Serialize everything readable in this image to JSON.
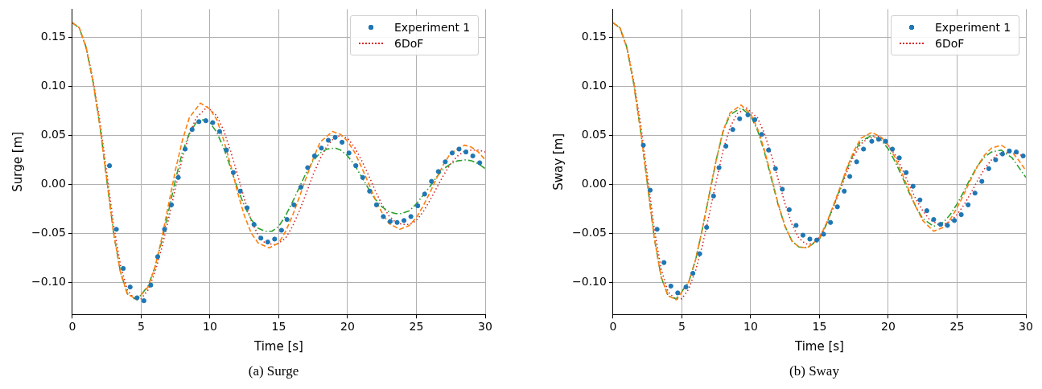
{
  "chart_data": [
    {
      "type": "line",
      "title": "(a) Surge",
      "xlabel": "Time [s]",
      "ylabel": "Surge [m]",
      "xlim": [
        0,
        30
      ],
      "ylim": [
        -0.133,
        0.179
      ],
      "xticks": [
        0,
        5,
        10,
        15,
        20,
        25,
        30
      ],
      "yticks": [
        {
          "value": -0.1,
          "label": "−0.10"
        },
        {
          "value": -0.05,
          "label": "−0.05"
        },
        {
          "value": 0,
          "label": "0.00"
        },
        {
          "value": 0.05,
          "label": "0.05"
        },
        {
          "value": 0.1,
          "label": "0.10"
        },
        {
          "value": 0.15,
          "label": "0.15"
        }
      ],
      "grid": true,
      "legend": "top right",
      "series": [
        {
          "name": "Experiment 1",
          "type": "scatter",
          "marker": "circle",
          "color": "#1f77b4",
          "x": [
            2.7,
            3.2,
            3.7,
            4.2,
            4.7,
            5.2,
            5.7,
            6.2,
            6.7,
            7.2,
            7.7,
            8.2,
            8.7,
            9.2,
            9.7,
            10.2,
            10.7,
            11.2,
            11.7,
            12.2,
            12.7,
            13.2,
            13.7,
            14.2,
            14.7,
            15.2,
            15.6,
            16.1,
            16.6,
            17.1,
            17.6,
            18.1,
            18.6,
            19.1,
            19.6,
            20.1,
            20.6,
            21.1,
            21.6,
            22.1,
            22.6,
            23.1,
            23.6,
            24.1,
            24.6,
            25.1,
            25.6,
            26.1,
            26.6,
            27.1,
            27.6,
            28.1,
            28.6,
            29.1,
            29.6
          ],
          "values": [
            0.019,
            -0.046,
            -0.086,
            -0.105,
            -0.116,
            -0.119,
            -0.103,
            -0.074,
            -0.046,
            -0.021,
            0.007,
            0.036,
            0.056,
            0.064,
            0.065,
            0.063,
            0.054,
            0.035,
            0.012,
            -0.007,
            -0.024,
            -0.041,
            -0.055,
            -0.059,
            -0.056,
            -0.047,
            -0.036,
            -0.021,
            -0.003,
            0.017,
            0.029,
            0.037,
            0.045,
            0.048,
            0.043,
            0.032,
            0.019,
            0.007,
            -0.007,
            -0.021,
            -0.033,
            -0.038,
            -0.039,
            -0.037,
            -0.033,
            -0.022,
            -0.01,
            0.003,
            0.013,
            0.023,
            0.032,
            0.036,
            0.033,
            0.029,
            0.022
          ]
        },
        {
          "type": "line",
          "line_style": "dashed",
          "marker": "none",
          "color": "#ff7f0e",
          "x": [
            0,
            0.5,
            1,
            1.5,
            2,
            2.5,
            3,
            3.5,
            4,
            4.7,
            5.5,
            6,
            6.5,
            7,
            7.5,
            8,
            8.5,
            9.3,
            10,
            10.5,
            11,
            11.5,
            12,
            12.5,
            13,
            13.5,
            14.3,
            15,
            15.5,
            16,
            16.5,
            17,
            17.5,
            18,
            18.9,
            19.5,
            20,
            20.5,
            21,
            21.5,
            22,
            22.5,
            23,
            23.8,
            24.5,
            25,
            25.5,
            26,
            26.5,
            27,
            27.5,
            28.5,
            29,
            29.5,
            30
          ],
          "values": [
            0.165,
            0.16,
            0.14,
            0.105,
            0.06,
            0.005,
            -0.05,
            -0.09,
            -0.112,
            -0.118,
            -0.105,
            -0.085,
            -0.055,
            -0.02,
            0.015,
            0.045,
            0.068,
            0.083,
            0.077,
            0.066,
            0.045,
            0.02,
            -0.008,
            -0.032,
            -0.05,
            -0.06,
            -0.065,
            -0.06,
            -0.048,
            -0.032,
            -0.013,
            0.007,
            0.026,
            0.043,
            0.054,
            0.051,
            0.044,
            0.033,
            0.018,
            0.002,
            -0.015,
            -0.029,
            -0.04,
            -0.046,
            -0.042,
            -0.034,
            -0.022,
            -0.008,
            0.007,
            0.021,
            0.032,
            0.04,
            0.038,
            0.033,
            0.025
          ]
        },
        {
          "type": "line",
          "line_style": "dashdot",
          "marker": "none",
          "color": "#2ca02c",
          "x": [
            0,
            0.5,
            1,
            1.5,
            2,
            2.5,
            3,
            3.5,
            4,
            4.7,
            5.5,
            6,
            6.5,
            7,
            7.5,
            8,
            8.5,
            9,
            9.5,
            10,
            10.5,
            11,
            11.5,
            12,
            12.5,
            13,
            13.5,
            14,
            14.5,
            15,
            15.5,
            16,
            16.5,
            17,
            17.5,
            18,
            18.5,
            19.1,
            19.5,
            20,
            20.5,
            21,
            21.5,
            22,
            22.5,
            23,
            23.5,
            23.9,
            24.5,
            25,
            25.5,
            26,
            26.5,
            27,
            27.5,
            28,
            28.6,
            29,
            29.5,
            30
          ],
          "values": [
            0.165,
            0.16,
            0.14,
            0.105,
            0.06,
            0.005,
            -0.05,
            -0.09,
            -0.112,
            -0.118,
            -0.104,
            -0.085,
            -0.058,
            -0.027,
            0.005,
            0.033,
            0.052,
            0.063,
            0.066,
            0.063,
            0.053,
            0.037,
            0.017,
            -0.004,
            -0.022,
            -0.036,
            -0.045,
            -0.048,
            -0.048,
            -0.043,
            -0.032,
            -0.018,
            -0.003,
            0.012,
            0.024,
            0.032,
            0.036,
            0.037,
            0.035,
            0.029,
            0.02,
            0.008,
            -0.004,
            -0.015,
            -0.023,
            -0.028,
            -0.03,
            -0.03,
            -0.027,
            -0.02,
            -0.011,
            -0.002,
            0.008,
            0.016,
            0.021,
            0.024,
            0.025,
            0.024,
            0.021,
            0.016
          ]
        },
        {
          "name": "6DoF",
          "type": "line",
          "line_style": "dotted",
          "marker": "none",
          "color": "#d62728",
          "x": [
            0,
            0.5,
            1,
            1.5,
            2,
            2.5,
            3,
            3.5,
            4,
            4.5,
            5,
            5.5,
            6,
            6.5,
            7,
            7.5,
            8,
            8.5,
            9,
            9.8,
            10.5,
            11,
            11.5,
            12,
            12.5,
            13,
            13.5,
            14,
            14.8,
            15.5,
            16,
            16.5,
            17,
            17.5,
            18,
            18.5,
            19,
            19.5,
            20,
            20.5,
            21,
            21.5,
            22,
            22.5,
            23,
            23.5,
            24,
            24.5,
            25,
            25.5,
            26,
            26.5,
            27,
            27.5,
            28,
            28.5,
            29,
            29.5,
            30
          ],
          "values": [
            0.165,
            0.16,
            0.14,
            0.107,
            0.065,
            0.012,
            -0.042,
            -0.083,
            -0.108,
            -0.117,
            -0.117,
            -0.108,
            -0.09,
            -0.065,
            -0.035,
            -0.003,
            0.027,
            0.051,
            0.068,
            0.079,
            0.07,
            0.055,
            0.034,
            0.01,
            -0.015,
            -0.037,
            -0.052,
            -0.06,
            -0.062,
            -0.055,
            -0.043,
            -0.027,
            -0.009,
            0.01,
            0.026,
            0.039,
            0.047,
            0.05,
            0.047,
            0.038,
            0.025,
            0.01,
            -0.006,
            -0.021,
            -0.032,
            -0.039,
            -0.041,
            -0.041,
            -0.037,
            -0.028,
            -0.016,
            -0.003,
            0.01,
            0.021,
            0.029,
            0.034,
            0.035,
            0.035,
            0.033
          ]
        }
      ]
    },
    {
      "type": "line",
      "title": "(b) Sway",
      "xlabel": "Time [s]",
      "ylabel": "Sway [m]",
      "xlim": [
        0,
        30
      ],
      "ylim": [
        -0.133,
        0.179
      ],
      "xticks": [
        0,
        5,
        10,
        15,
        20,
        25,
        30
      ],
      "yticks": [
        {
          "value": -0.1,
          "label": "−0.10"
        },
        {
          "value": -0.05,
          "label": "−0.05"
        },
        {
          "value": 0,
          "label": "0.00"
        },
        {
          "value": 0.05,
          "label": "0.05"
        },
        {
          "value": 0.1,
          "label": "0.10"
        },
        {
          "value": 0.15,
          "label": "0.15"
        }
      ],
      "grid": true,
      "legend": "top right",
      "series": [
        {
          "name": "Experiment 1",
          "type": "scatter",
          "marker": "circle",
          "color": "#1f77b4",
          "x": [
            2.2,
            2.7,
            3.2,
            3.7,
            4.2,
            4.7,
            5.3,
            5.8,
            6.3,
            6.8,
            7.3,
            7.7,
            8.2,
            8.7,
            9.2,
            9.8,
            10.3,
            10.8,
            11.3,
            11.8,
            12.3,
            12.8,
            13.3,
            13.8,
            14.3,
            14.8,
            15.3,
            15.8,
            16.3,
            16.8,
            17.2,
            17.7,
            18.2,
            18.8,
            19.3,
            19.8,
            20.3,
            20.8,
            21.3,
            21.8,
            22.3,
            22.8,
            23.3,
            23.8,
            24.3,
            24.8,
            25.3,
            25.8,
            26.3,
            26.8,
            27.3,
            27.8,
            28.3,
            28.8,
            29.3,
            29.8
          ],
          "values": [
            0.04,
            -0.006,
            -0.046,
            -0.08,
            -0.104,
            -0.111,
            -0.105,
            -0.091,
            -0.071,
            -0.044,
            -0.012,
            0.017,
            0.039,
            0.056,
            0.067,
            0.071,
            0.066,
            0.051,
            0.035,
            0.016,
            -0.005,
            -0.026,
            -0.042,
            -0.052,
            -0.056,
            -0.057,
            -0.051,
            -0.039,
            -0.023,
            -0.007,
            0.008,
            0.023,
            0.036,
            0.044,
            0.046,
            0.044,
            0.036,
            0.027,
            0.012,
            -0.002,
            -0.016,
            -0.027,
            -0.036,
            -0.041,
            -0.042,
            -0.037,
            -0.031,
            -0.021,
            -0.009,
            0.003,
            0.016,
            0.025,
            0.031,
            0.034,
            0.033,
            0.029
          ]
        },
        {
          "type": "line",
          "line_style": "dashed",
          "marker": "none",
          "color": "#ff7f0e",
          "x": [
            0,
            0.5,
            1,
            1.5,
            2,
            2.5,
            3,
            3.5,
            4,
            4.6,
            5.5,
            6,
            6.5,
            7,
            7.5,
            8,
            8.5,
            9.3,
            10,
            10.5,
            11,
            11.5,
            12,
            12.5,
            13,
            13.5,
            14.1,
            15,
            15.5,
            16,
            16.5,
            17,
            17.5,
            18,
            18.8,
            19.5,
            20,
            20.5,
            21,
            21.5,
            22,
            22.5,
            23.3,
            24,
            24.5,
            25,
            25.5,
            26,
            26.5,
            27,
            27.5,
            28.2,
            29,
            29.5,
            30
          ],
          "values": [
            0.165,
            0.16,
            0.14,
            0.103,
            0.055,
            0,
            -0.055,
            -0.095,
            -0.114,
            -0.118,
            -0.1,
            -0.077,
            -0.045,
            -0.01,
            0.025,
            0.055,
            0.073,
            0.081,
            0.072,
            0.057,
            0.035,
            0.008,
            -0.02,
            -0.043,
            -0.058,
            -0.064,
            -0.065,
            -0.055,
            -0.04,
            -0.022,
            -0.003,
            0.017,
            0.034,
            0.047,
            0.053,
            0.048,
            0.04,
            0.027,
            0.011,
            -0.006,
            -0.023,
            -0.037,
            -0.048,
            -0.044,
            -0.036,
            -0.024,
            -0.01,
            0.005,
            0.019,
            0.03,
            0.037,
            0.04,
            0.033,
            0.024,
            0.014
          ]
        },
        {
          "type": "line",
          "line_style": "dashdot",
          "marker": "none",
          "color": "#2ca02c",
          "x": [
            0,
            0.5,
            1,
            1.5,
            2,
            2.5,
            3,
            3.5,
            4,
            4.6,
            5.5,
            6,
            6.5,
            7,
            7.5,
            8,
            8.5,
            9.3,
            10,
            10.5,
            11,
            11.5,
            12,
            12.5,
            13,
            13.5,
            14.1,
            15,
            15.5,
            16,
            16.5,
            17,
            17.5,
            18,
            18.8,
            19.5,
            20,
            20.5,
            21,
            21.5,
            22,
            22.5,
            23.3,
            24,
            24.5,
            25,
            25.5,
            26,
            26.5,
            27,
            27.5,
            28.2,
            29,
            29.5,
            30
          ],
          "values": [
            0.165,
            0.16,
            0.14,
            0.103,
            0.055,
            0,
            -0.055,
            -0.095,
            -0.114,
            -0.117,
            -0.1,
            -0.077,
            -0.045,
            -0.01,
            0.025,
            0.054,
            0.071,
            0.078,
            0.07,
            0.055,
            0.033,
            0.006,
            -0.021,
            -0.043,
            -0.058,
            -0.064,
            -0.065,
            -0.056,
            -0.041,
            -0.023,
            -0.004,
            0.016,
            0.032,
            0.044,
            0.05,
            0.045,
            0.036,
            0.023,
            0.008,
            -0.008,
            -0.023,
            -0.035,
            -0.043,
            -0.039,
            -0.031,
            -0.02,
            -0.007,
            0.007,
            0.019,
            0.028,
            0.033,
            0.035,
            0.027,
            0.017,
            0.007
          ]
        },
        {
          "name": "6DoF",
          "type": "line",
          "line_style": "dotted",
          "marker": "none",
          "color": "#d62728",
          "x": [
            0,
            0.5,
            1,
            1.5,
            2,
            2.5,
            3,
            3.5,
            4,
            4.5,
            5,
            5.5,
            6,
            6.5,
            7,
            7.5,
            8,
            8.5,
            9,
            9.7,
            10.5,
            11,
            11.5,
            12,
            12.5,
            13,
            13.5,
            14,
            14.5,
            15,
            15.5,
            16,
            16.5,
            17,
            17.5,
            18,
            18.5,
            19.3,
            20,
            20.5,
            21,
            21.5,
            22,
            22.5,
            23,
            23.5,
            24,
            24.5,
            25,
            25.5,
            26,
            26.5,
            27,
            27.5,
            28,
            29,
            29.5,
            30
          ],
          "values": [
            0.165,
            0.16,
            0.14,
            0.106,
            0.062,
            0.008,
            -0.046,
            -0.087,
            -0.11,
            -0.117,
            -0.117,
            -0.107,
            -0.088,
            -0.062,
            -0.03,
            0.003,
            0.035,
            0.058,
            0.072,
            0.078,
            0.068,
            0.052,
            0.03,
            0.005,
            -0.02,
            -0.041,
            -0.055,
            -0.061,
            -0.061,
            -0.054,
            -0.041,
            -0.024,
            -0.006,
            0.013,
            0.029,
            0.041,
            0.047,
            0.049,
            0.04,
            0.03,
            0.016,
            0,
            -0.015,
            -0.027,
            -0.036,
            -0.04,
            -0.041,
            -0.038,
            -0.031,
            -0.021,
            -0.009,
            0.004,
            0.016,
            0.025,
            0.031,
            0.033,
            0.031,
            0.027
          ]
        }
      ]
    }
  ]
}
